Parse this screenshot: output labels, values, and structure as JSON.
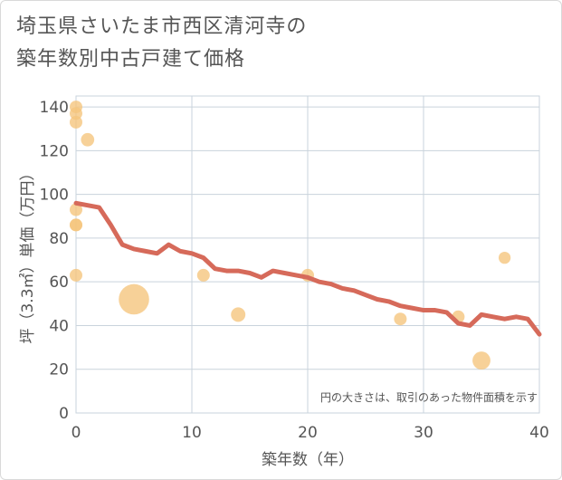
{
  "chart_data": {
    "type": "scatter",
    "title_line1": "埼玉県さいたま市西区清河寺の",
    "title_line2": "築年数別中古戸建て価格",
    "xlabel": "築年数（年）",
    "ylabel": "坪（3.3㎡）単価（万円）",
    "xlim": [
      0,
      40
    ],
    "ylim": [
      0,
      145
    ],
    "xticks": [
      0,
      10,
      20,
      30,
      40
    ],
    "yticks": [
      0,
      20,
      40,
      60,
      80,
      100,
      120,
      140
    ],
    "note": "円の大きさは、取引のあった物件面積を示す",
    "colors": {
      "bubble": "#f5c57e",
      "line": "#d66a5a",
      "grid": "#c9d3dc",
      "text": "#555555"
    },
    "scatter": [
      {
        "x": 0,
        "y": 140,
        "size": 1
      },
      {
        "x": 0,
        "y": 137,
        "size": 1
      },
      {
        "x": 0,
        "y": 133,
        "size": 1
      },
      {
        "x": 1,
        "y": 125,
        "size": 1.1
      },
      {
        "x": 0,
        "y": 93,
        "size": 1
      },
      {
        "x": 0,
        "y": 86,
        "size": 1
      },
      {
        "x": 0,
        "y": 86,
        "size": 1
      },
      {
        "x": 0,
        "y": 63,
        "size": 1
      },
      {
        "x": 5,
        "y": 52,
        "size": 4
      },
      {
        "x": 11,
        "y": 63,
        "size": 1
      },
      {
        "x": 14,
        "y": 45,
        "size": 1.3
      },
      {
        "x": 20,
        "y": 63,
        "size": 1
      },
      {
        "x": 28,
        "y": 43,
        "size": 1
      },
      {
        "x": 33,
        "y": 44,
        "size": 1
      },
      {
        "x": 35,
        "y": 24,
        "size": 2
      },
      {
        "x": 37,
        "y": 71,
        "size": 0.9
      }
    ],
    "trend": {
      "x": [
        0,
        1,
        2,
        3,
        4,
        5,
        6,
        7,
        8,
        9,
        10,
        11,
        12,
        13,
        14,
        15,
        16,
        17,
        18,
        19,
        20,
        21,
        22,
        23,
        24,
        25,
        26,
        27,
        28,
        29,
        30,
        31,
        32,
        33,
        34,
        35,
        36,
        37,
        38,
        39,
        40
      ],
      "y": [
        96,
        95,
        94,
        86,
        77,
        75,
        74,
        73,
        77,
        74,
        73,
        71,
        66,
        65,
        65,
        64,
        62,
        65,
        64,
        63,
        62,
        60,
        59,
        57,
        56,
        54,
        52,
        51,
        49,
        48,
        47,
        47,
        46,
        41,
        40,
        45,
        44,
        43,
        44,
        43,
        36
      ]
    }
  }
}
